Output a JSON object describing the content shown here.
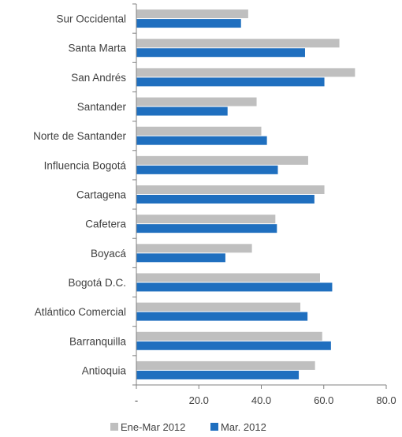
{
  "chart_data": {
    "type": "bar",
    "orientation": "horizontal",
    "categories": [
      "Sur Occidental",
      "Santa Marta",
      "San Andrés",
      "Santander",
      "Norte de Santander",
      "Influencia Bogotá",
      "Cartagena",
      "Cafetera",
      "Boyacá",
      "Bogotá D.C.",
      "Atlántico Comercial",
      "Barranquilla",
      "Antioquia"
    ],
    "series": [
      {
        "name": "Ene-Mar 2012",
        "color": "#bfbfbf",
        "values": [
          35.8,
          65.0,
          70.0,
          38.5,
          40.0,
          55.0,
          60.2,
          44.5,
          37.0,
          58.8,
          52.5,
          59.5,
          57.2
        ]
      },
      {
        "name": "Mar. 2012",
        "color": "#1f6fbf",
        "values": [
          33.5,
          54.0,
          60.2,
          29.2,
          41.8,
          45.3,
          57.0,
          45.0,
          28.5,
          62.7,
          54.8,
          62.3,
          52.0
        ]
      }
    ],
    "xlim": [
      0,
      80
    ],
    "x_ticks": [
      {
        "value": 0,
        "label": "-"
      },
      {
        "value": 20,
        "label": "20.0"
      },
      {
        "value": 40,
        "label": "40.0"
      },
      {
        "value": 60,
        "label": "60.0"
      },
      {
        "value": 80,
        "label": "80.0"
      }
    ],
    "title": "",
    "xlabel": "",
    "ylabel": "",
    "grid": false,
    "legend_position": "bottom"
  }
}
